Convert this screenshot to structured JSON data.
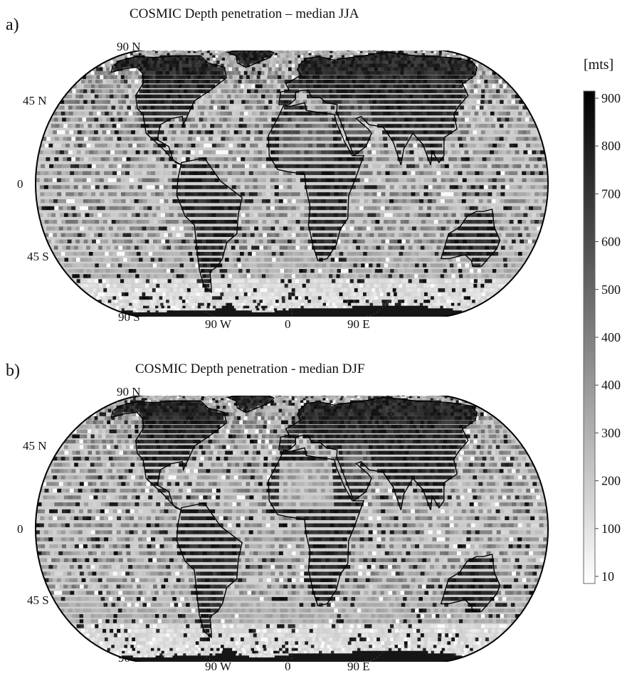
{
  "panels": [
    {
      "letter": "a)",
      "title": "COSMIC Depth penetration – median JJA",
      "lat_labels": [
        "90 N",
        "45 N",
        "0",
        "45 S",
        "90 S"
      ],
      "lon_labels": [
        "90 W",
        "0",
        "90 E"
      ]
    },
    {
      "letter": "b)",
      "title": "COSMIC Depth penetration - median DJF",
      "lat_labels": [
        "90 N",
        "45 N",
        "0",
        "45 S",
        "90 S"
      ],
      "lon_labels": [
        "90 W",
        "0",
        "90 E"
      ]
    }
  ],
  "colorbar": {
    "unit": "[mts]",
    "tick_labels": [
      "900",
      "800",
      "700",
      "600",
      "500",
      "400",
      "400",
      "300",
      "200",
      "100",
      "10"
    ],
    "top_color": "#000000",
    "bottom_color": "#ffffff"
  },
  "map": {
    "projection": "Robinson-like world",
    "land_color": "#2a2a2a",
    "ocean_color": "#bdbdbd",
    "southern_ocean_color": "#e8e8e8",
    "coastline_color": "#000000"
  }
}
